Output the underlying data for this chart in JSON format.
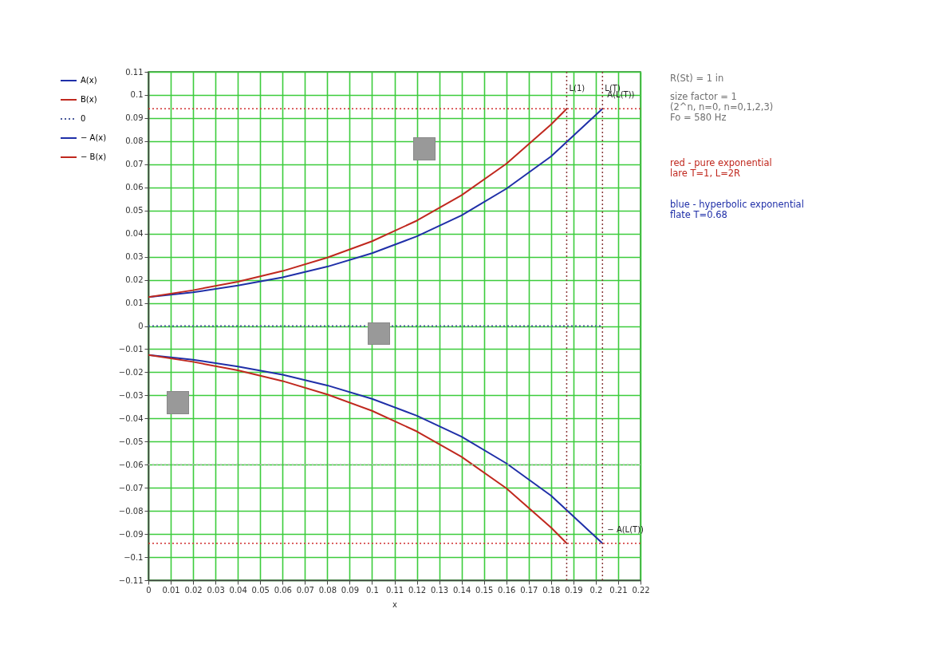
{
  "chart_data": {
    "type": "line",
    "xlabel": "x",
    "xlim": [
      0,
      0.22
    ],
    "ylim": [
      -0.11,
      0.11
    ],
    "xticks": [
      0,
      0.01,
      0.02,
      0.03,
      0.04,
      0.05,
      0.06,
      0.07,
      0.08,
      0.09,
      0.1,
      0.11,
      0.12,
      0.13,
      0.14,
      0.15,
      0.16,
      0.17,
      0.18,
      0.19,
      0.2,
      0.21,
      0.22
    ],
    "yticks": [
      -0.11,
      -0.1,
      -0.09,
      -0.08,
      -0.07,
      -0.06,
      -0.05,
      -0.04,
      -0.03,
      -0.02,
      -0.01,
      0,
      0.01,
      0.02,
      0.03,
      0.04,
      0.05,
      0.06,
      0.07,
      0.08,
      0.09,
      0.1,
      0.11
    ],
    "grid": true,
    "legend": "left",
    "series": [
      {
        "name": "A(x)",
        "color": "#1f2fa8",
        "line_style": "solid",
        "x": [
          0,
          0.02,
          0.04,
          0.06,
          0.08,
          0.1,
          0.12,
          0.14,
          0.16,
          0.18,
          0.203
        ],
        "values": [
          0.0125,
          0.0146,
          0.0175,
          0.0211,
          0.0257,
          0.0315,
          0.0388,
          0.0479,
          0.0594,
          0.0734,
          0.094
        ]
      },
      {
        "name": "B(x)",
        "color": "#c0281e",
        "line_style": "solid",
        "x": [
          0,
          0.02,
          0.04,
          0.06,
          0.08,
          0.1,
          0.12,
          0.14,
          0.16,
          0.18,
          0.187
        ],
        "values": [
          0.0125,
          0.0155,
          0.0192,
          0.0238,
          0.0296,
          0.0367,
          0.0456,
          0.0566,
          0.0702,
          0.0872,
          0.094
        ]
      },
      {
        "name": "0",
        "color": "#4a5a9a",
        "line_style": "dotted",
        "x": [
          0,
          0.203
        ],
        "values": [
          0,
          0
        ]
      },
      {
        "name": "− A(x)",
        "color": "#1f2fa8",
        "line_style": "solid",
        "x": [
          0,
          0.02,
          0.04,
          0.06,
          0.08,
          0.1,
          0.12,
          0.14,
          0.16,
          0.18,
          0.203
        ],
        "values": [
          -0.0125,
          -0.0146,
          -0.0175,
          -0.0211,
          -0.0257,
          -0.0315,
          -0.0388,
          -0.0479,
          -0.0594,
          -0.0734,
          -0.094
        ]
      },
      {
        "name": "− B(x)",
        "color": "#c0281e",
        "line_style": "solid",
        "x": [
          0,
          0.02,
          0.04,
          0.06,
          0.08,
          0.1,
          0.12,
          0.14,
          0.16,
          0.18,
          0.187
        ],
        "values": [
          -0.0125,
          -0.0155,
          -0.0192,
          -0.0238,
          -0.0296,
          -0.0367,
          -0.0456,
          -0.0566,
          -0.0702,
          -0.0872,
          -0.094
        ]
      }
    ],
    "ref_lines": [
      {
        "axis": "x",
        "value": 0.187,
        "label": "L(1)",
        "color": "#8a3a3a",
        "line_style": "dotted"
      },
      {
        "axis": "x",
        "value": 0.203,
        "label": "L(T)",
        "color": "#8a3a3a",
        "line_style": "dotted"
      },
      {
        "axis": "y",
        "value": 0.094,
        "label": null,
        "color": "#d03030",
        "line_style": "dotted"
      },
      {
        "axis": "y",
        "value": -0.094,
        "label": null,
        "color": "#d03030",
        "line_style": "dotted"
      },
      {
        "axis": "y",
        "value": -0.06,
        "label": null,
        "color": "#b0b0b0",
        "line_style": "dotted"
      }
    ],
    "annotations": [
      {
        "text": "A(L(T))",
        "x": 0.203,
        "y": 0.094
      },
      {
        "text": "− A(L(T))",
        "x": 0.203,
        "y": -0.094
      },
      "R(St) = 1 in",
      "size factor = 1",
      "(2^n, n=0, n=0,1,2,3)",
      "Fo = 580 Hz",
      "red - pure exponential",
      "lare T=1, L=2R",
      "blue - hyperbolic exponential",
      "flate T=0.68"
    ]
  }
}
